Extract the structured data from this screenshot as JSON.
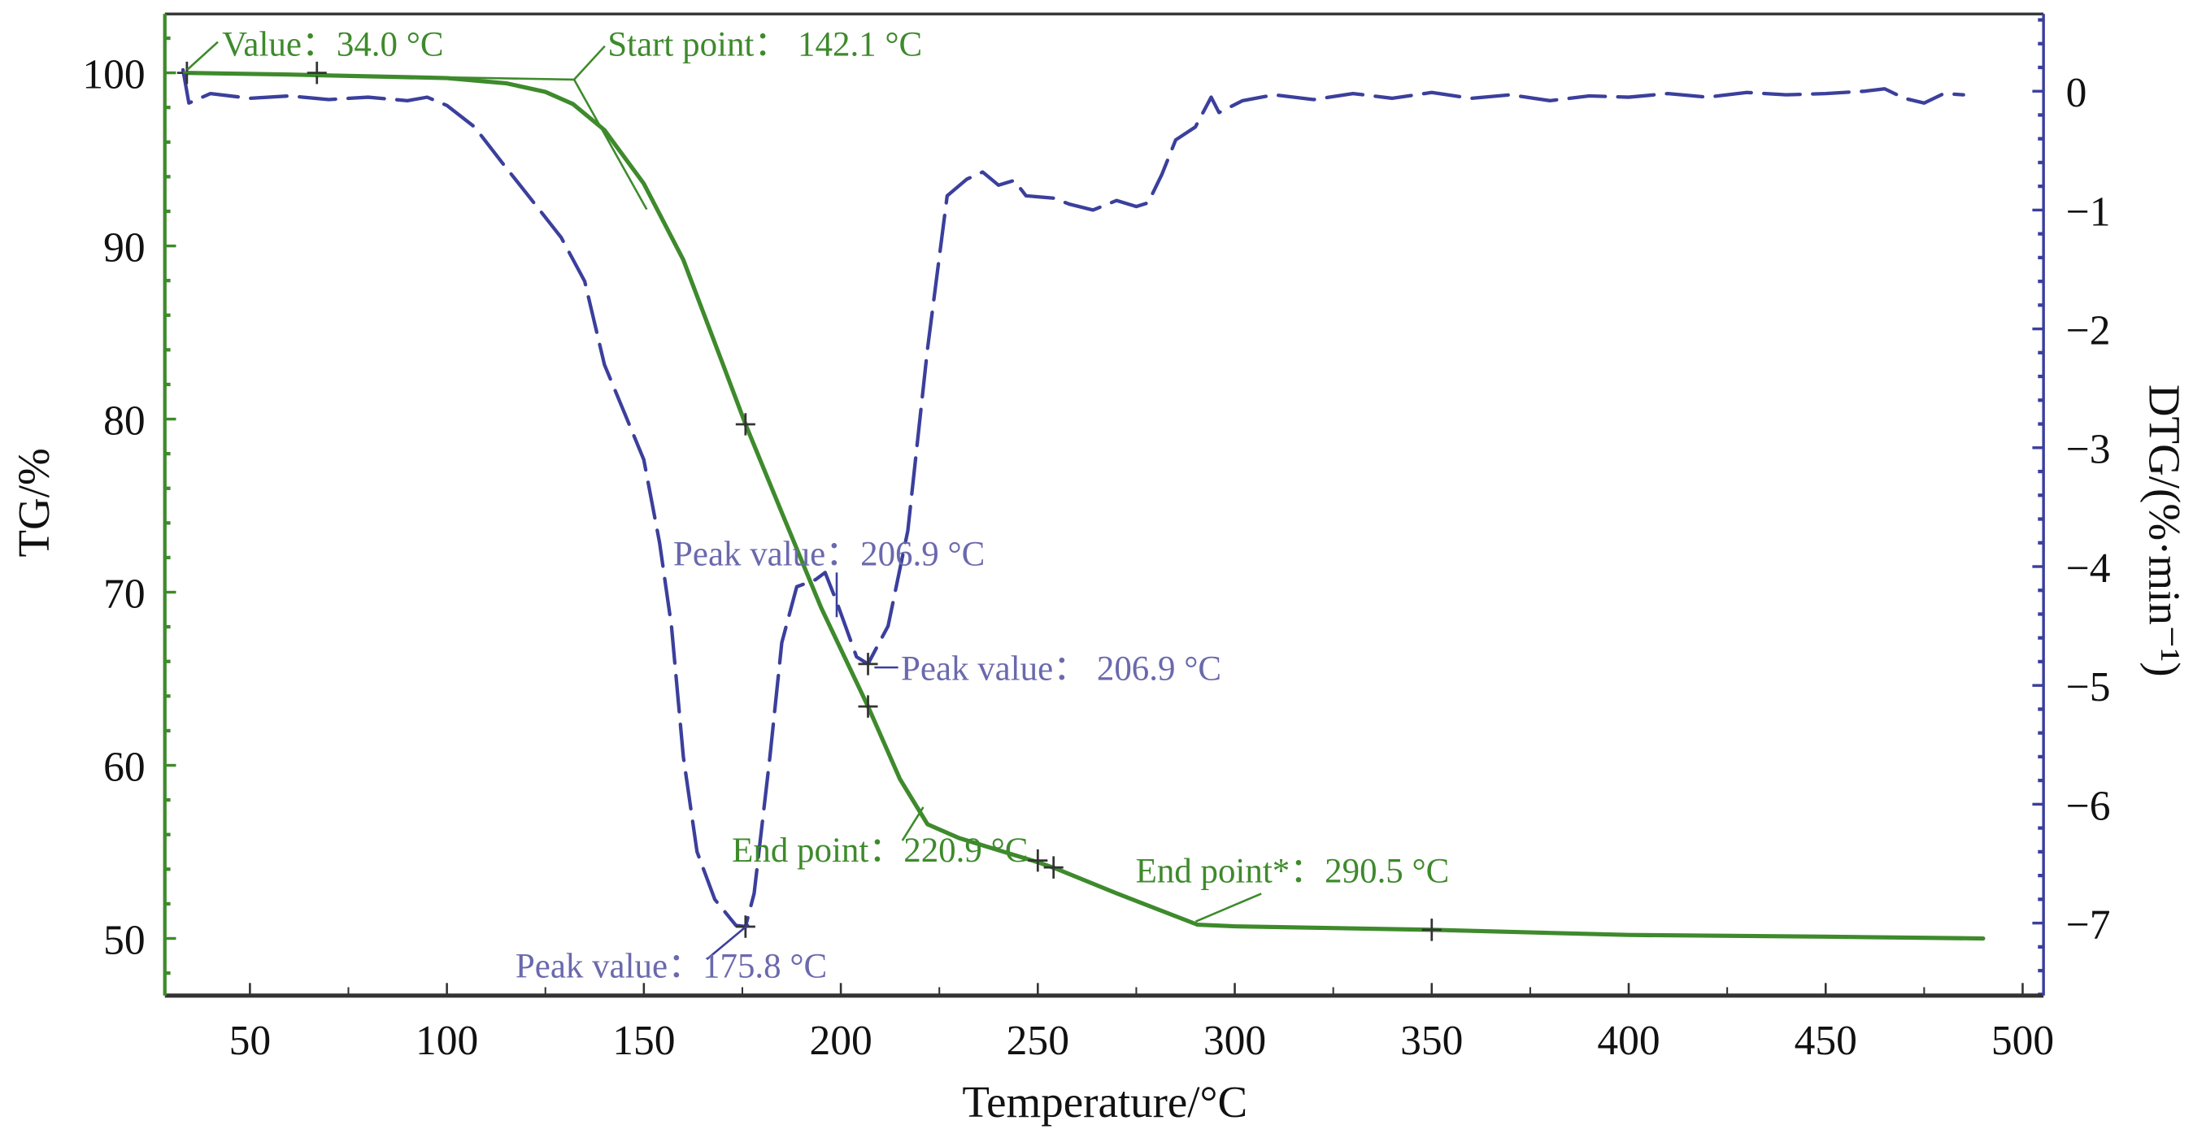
{
  "chart_data": {
    "type": "line",
    "title": "",
    "xlabel": "Temperature/°C",
    "ylabel_left": "TG/%",
    "ylabel_right": "DTG/(%·min⁻¹)",
    "xlim": [
      28.4,
      505.3
    ],
    "ylim_left": [
      46.7,
      103.4
    ],
    "ylim_right": [
      -7.61,
      0.65
    ],
    "grid": false,
    "x_ticks": [
      50,
      100,
      150,
      200,
      250,
      300,
      350,
      400,
      450,
      500
    ],
    "y_left_ticks": [
      50,
      60,
      70,
      80,
      90,
      100
    ],
    "y_right_ticks": [
      0,
      -1,
      -2,
      -3,
      -4,
      -5,
      -6,
      -7
    ],
    "y_right_tick_labels": [
      "0",
      "−1",
      "−2",
      "−3",
      "−4",
      "−5",
      "−6",
      "−7"
    ],
    "colors": {
      "tg": "#3e8a2c",
      "dtg": "#3b3f9c",
      "tg_axis": "#3e8a2c",
      "dtg_axis": "#3b3f9c",
      "frame": "#333333"
    },
    "series": [
      {
        "name": "TG",
        "axis": "left",
        "style": "solid",
        "x": [
          34,
          60,
          100,
          115,
          125,
          132,
          140,
          150,
          160,
          170,
          175.8,
          185,
          195,
          206.9,
          215,
          222,
          230,
          240,
          250,
          255,
          270,
          290.5,
          300,
          350,
          400,
          450,
          490
        ],
        "y": [
          100,
          99.9,
          99.7,
          99.4,
          98.9,
          98.2,
          96.7,
          93.6,
          89.2,
          83.2,
          79.7,
          74.6,
          69.1,
          63.4,
          59.2,
          56.6,
          55.8,
          55.1,
          54.4,
          54.0,
          52.6,
          50.8,
          50.7,
          50.5,
          50.2,
          50.1,
          50.0
        ]
      },
      {
        "name": "DTG",
        "axis": "right",
        "style": "dashed",
        "x": [
          33,
          34.5,
          40,
          50,
          60,
          70,
          80,
          90,
          95,
          100,
          107,
          114,
          120,
          129,
          135,
          140,
          145,
          150,
          154,
          157,
          160,
          163.5,
          168,
          173.4,
          175.8,
          178,
          182,
          185,
          188.8,
          193.6,
          196,
          199,
          204,
          206.9,
          212,
          217,
          222,
          227,
          232,
          236,
          240,
          244,
          247,
          254,
          258,
          264,
          270,
          275,
          278,
          281.5,
          285,
          290,
          294,
          296,
          302,
          310,
          320,
          330,
          340,
          350,
          360,
          370,
          380,
          390,
          400,
          410,
          420,
          430,
          440,
          450,
          460,
          465,
          470,
          475,
          480,
          485
        ],
        "y": [
          0.18,
          -0.1,
          -0.02,
          -0.06,
          -0.04,
          -0.07,
          -0.05,
          -0.08,
          -0.05,
          -0.12,
          -0.3,
          -0.6,
          -0.85,
          -1.23,
          -1.6,
          -2.3,
          -2.7,
          -3.1,
          -3.8,
          -4.5,
          -5.6,
          -6.4,
          -6.8,
          -7.02,
          -7.03,
          -6.75,
          -5.6,
          -4.64,
          -4.17,
          -4.11,
          -4.05,
          -4.3,
          -4.76,
          -4.82,
          -4.5,
          -3.7,
          -2.17,
          -0.88,
          -0.74,
          -0.68,
          -0.79,
          -0.75,
          -0.88,
          -0.9,
          -0.95,
          -1.0,
          -0.92,
          -0.97,
          -0.94,
          -0.7,
          -0.41,
          -0.3,
          -0.05,
          -0.18,
          -0.08,
          -0.03,
          -0.07,
          -0.02,
          -0.06,
          -0.01,
          -0.06,
          -0.03,
          -0.08,
          -0.04,
          -0.05,
          -0.02,
          -0.05,
          -0.01,
          -0.03,
          -0.02,
          0.0,
          0.02,
          -0.06,
          -0.1,
          -0.02,
          -0.03
        ]
      }
    ],
    "markers": [
      {
        "x": 34.0,
        "y": 100,
        "axis": "left"
      },
      {
        "x": 67,
        "y": 100,
        "axis": "left"
      },
      {
        "x": 175.8,
        "y": 79.7,
        "axis": "left"
      },
      {
        "x": 206.9,
        "y": 63.4,
        "axis": "left"
      },
      {
        "x": 206.9,
        "y": -4.82,
        "axis": "right"
      },
      {
        "x": 175.8,
        "y": -7.03,
        "axis": "right"
      },
      {
        "x": 250,
        "y": 54.5,
        "axis": "left"
      },
      {
        "x": 254,
        "y": 54.1,
        "axis": "left"
      },
      {
        "x": 350,
        "y": 50.5,
        "axis": "left"
      }
    ],
    "annotations": {
      "value_start": "Value：34.0 °C",
      "start_point": "Start point：  142.1 °C",
      "peak_upper_left": "Peak value：206.9 °C",
      "peak_upper_right": "Peak value：  206.9 °C",
      "end_point": "End point：220.9 °C",
      "end_point_star": "End point*：290.5 °C",
      "peak_lower": "Peak value：175.8 °C"
    }
  }
}
